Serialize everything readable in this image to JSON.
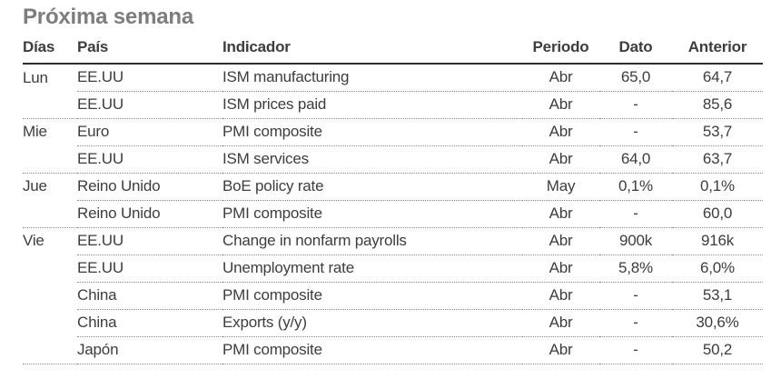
{
  "page": {
    "title": "Próxima semana"
  },
  "colors": {
    "title": "#7d7d7d",
    "text": "#3d3d3d",
    "header_rule": "#2e2e2e",
    "row_rule": "#8f8f8f",
    "background": "#ffffff"
  },
  "table": {
    "columns": [
      "Días",
      "País",
      "Indicador",
      "Periodo",
      "Dato",
      "Anterior"
    ],
    "rows": [
      {
        "day": "Lun",
        "country": "EE.UU",
        "indicator": "ISM manufacturing",
        "period": "Abr",
        "dato": "65,0",
        "anterior": "64,7"
      },
      {
        "day": "",
        "country": "EE.UU",
        "indicator": "ISM prices paid",
        "period": "Abr",
        "dato": "-",
        "anterior": "85,6"
      },
      {
        "day": "Mie",
        "country": "Euro",
        "indicator": "PMI composite",
        "period": "Abr",
        "dato": "-",
        "anterior": "53,7"
      },
      {
        "day": "",
        "country": "EE.UU",
        "indicator": "ISM services",
        "period": "Abr",
        "dato": "64,0",
        "anterior": "63,7"
      },
      {
        "day": "Jue",
        "country": "Reino Unido",
        "indicator": "BoE policy rate",
        "period": "May",
        "dato": "0,1%",
        "anterior": "0,1%"
      },
      {
        "day": "",
        "country": "Reino Unido",
        "indicator": "PMI composite",
        "period": "Abr",
        "dato": "-",
        "anterior": "60,0"
      },
      {
        "day": "Vie",
        "country": "EE.UU",
        "indicator": "Change in nonfarm payrolls",
        "period": "Abr",
        "dato": "900k",
        "anterior": "916k"
      },
      {
        "day": "",
        "country": "EE.UU",
        "indicator": "Unemployment rate",
        "period": "Abr",
        "dato": "5,8%",
        "anterior": "6,0%"
      },
      {
        "day": "",
        "country": "China",
        "indicator": "PMI composite",
        "period": "Abr",
        "dato": "-",
        "anterior": "53,1"
      },
      {
        "day": "",
        "country": "China",
        "indicator": "Exports (y/y)",
        "period": "Abr",
        "dato": "-",
        "anterior": "30,6%"
      },
      {
        "day": "",
        "country": "Japón",
        "indicator": "PMI composite",
        "period": "Abr",
        "dato": "-",
        "anterior": "50,2"
      }
    ]
  }
}
